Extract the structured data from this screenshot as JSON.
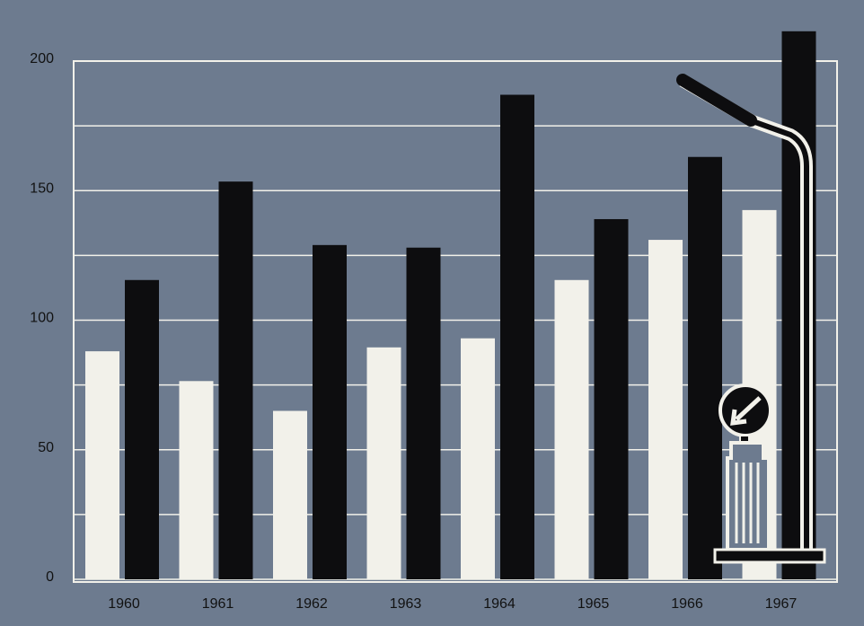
{
  "chart_data": {
    "type": "bar",
    "categories": [
      "1960",
      "1961",
      "1962",
      "1963",
      "1964",
      "1965",
      "1966",
      "1967"
    ],
    "series": [
      {
        "color": "#f2f1ea",
        "values": [
          88,
          76.5,
          65,
          89.5,
          93,
          115.5,
          131,
          142.5
        ]
      },
      {
        "color": "#0d0d0f",
        "values": [
          115.5,
          153.5,
          129,
          128,
          187,
          139,
          163,
          211.5
        ]
      }
    ],
    "ylim": [
      0,
      200
    ],
    "yticks": [
      0,
      50,
      100,
      150,
      200
    ],
    "grid": true,
    "minor_grid": [
      25,
      75,
      125,
      175
    ]
  }
}
